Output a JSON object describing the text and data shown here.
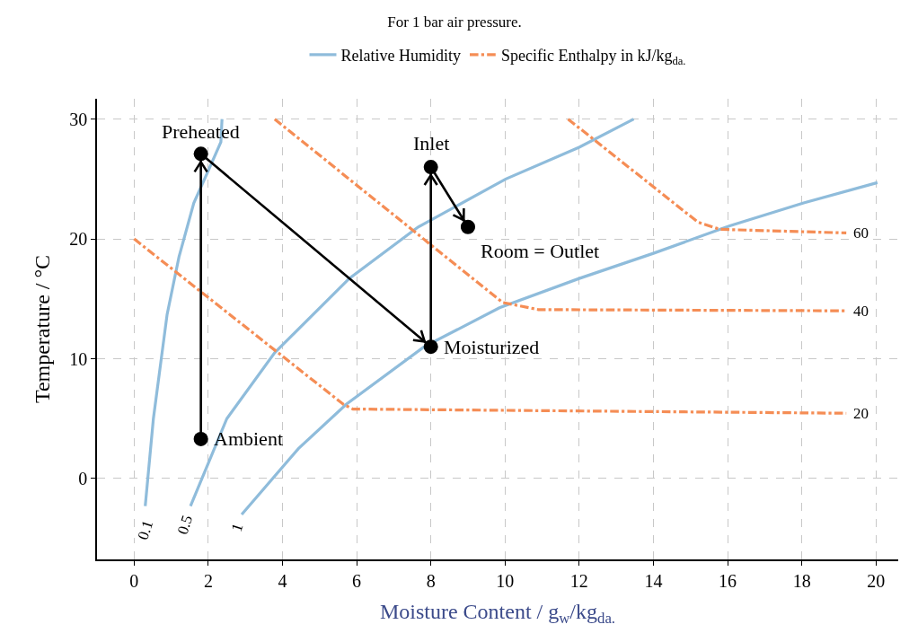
{
  "chart_data": {
    "type": "line",
    "title": "For 1 bar air pressure.",
    "xlabel": "Moisture Content / g$_{w}$/kg$_{da.}$",
    "ylabel": "Temperature / °C",
    "xlim": [
      -1,
      20.6
    ],
    "ylim": [
      -6.75,
      31.7
    ],
    "xticks": [
      0,
      2,
      4,
      6,
      8,
      10,
      12,
      14,
      16,
      18,
      20
    ],
    "yticks": [
      0,
      10,
      20,
      30
    ],
    "grid": true,
    "legend": "top",
    "series": [
      {
        "name": "Relative Humidity",
        "color": "#8fbcdb",
        "line_style": "solid",
        "marker": "none",
        "x": [
          0.3,
          0.52,
          0.89,
          1.21,
          1.61,
          2.0,
          2.34,
          2.37
        ],
        "values": [
          -2.3,
          5.0,
          13.7,
          18.5,
          23.0,
          25.7,
          28.1,
          30.0
        ]
      },
      {
        "color": "#8fbcdb",
        "line_style": "solid",
        "marker": "none",
        "x": [
          1.52,
          2.5,
          3.79,
          5.8,
          7.66,
          10.02,
          12.0,
          13.47
        ],
        "values": [
          -2.3,
          5.0,
          10.5,
          16.7,
          21.0,
          25.0,
          27.65,
          30.0
        ]
      },
      {
        "color": "#8fbcdb",
        "line_style": "solid",
        "marker": "none",
        "x": [
          2.9,
          4.43,
          5.72,
          7.82,
          9.85,
          12.0,
          14.0,
          16.06,
          18.05,
          20.04
        ],
        "values": [
          -3.0,
          2.5,
          6.2,
          11.0,
          14.25,
          16.7,
          18.8,
          21.1,
          23.0,
          24.7
        ]
      },
      {
        "name": "Specific Enthalpy in kJ/kg$_{da.}$",
        "color": "#f58d55",
        "line_style": "dashed",
        "marker": "none",
        "x": [
          0,
          5.64,
          5.9,
          19.2
        ],
        "values": [
          20.0,
          6.2,
          5.8,
          5.45
        ]
      },
      {
        "color": "#f58d55",
        "line_style": "dashed",
        "marker": "none",
        "x": [
          3.79,
          9.93,
          10.9,
          19.2
        ],
        "values": [
          30.0,
          14.7,
          14.1,
          14.0
        ]
      },
      {
        "color": "#f58d55",
        "line_style": "dashed",
        "marker": "none",
        "x": [
          11.7,
          15.2,
          15.8,
          19.2
        ],
        "values": [
          30.0,
          21.4,
          20.8,
          20.5
        ]
      },
      {
        "color": "#000000",
        "line_style": "solid",
        "marker": "circle",
        "x": [
          1.8,
          1.8,
          8.0,
          8.0,
          9.0
        ],
        "values": [
          3.3,
          27.1,
          11.0,
          26.0,
          21.0
        ]
      }
    ],
    "annotations": [
      {
        "text": "Ambient",
        "x": 1.8,
        "y": 3.3
      },
      {
        "text": "Preheated",
        "x": 1.8,
        "y": 27.1
      },
      {
        "text": "Moisturized",
        "x": 8.0,
        "y": 11.0
      },
      {
        "text": "Inlet",
        "x": 8.0,
        "y": 26.0
      },
      {
        "text": "Room = Outlet",
        "x": 9.0,
        "y": 21.0
      },
      {
        "text": "0.1",
        "x": 0.3,
        "y": -4.3
      },
      {
        "text": "0.5",
        "x": 1.38,
        "y": -3.9
      },
      {
        "text": "1",
        "x": 2.78,
        "y": -4.1
      },
      {
        "text": "20",
        "x": 19.2,
        "y": 5.45
      },
      {
        "text": "40",
        "x": 19.2,
        "y": 14.0
      },
      {
        "text": "60",
        "x": 19.2,
        "y": 20.5
      }
    ]
  }
}
